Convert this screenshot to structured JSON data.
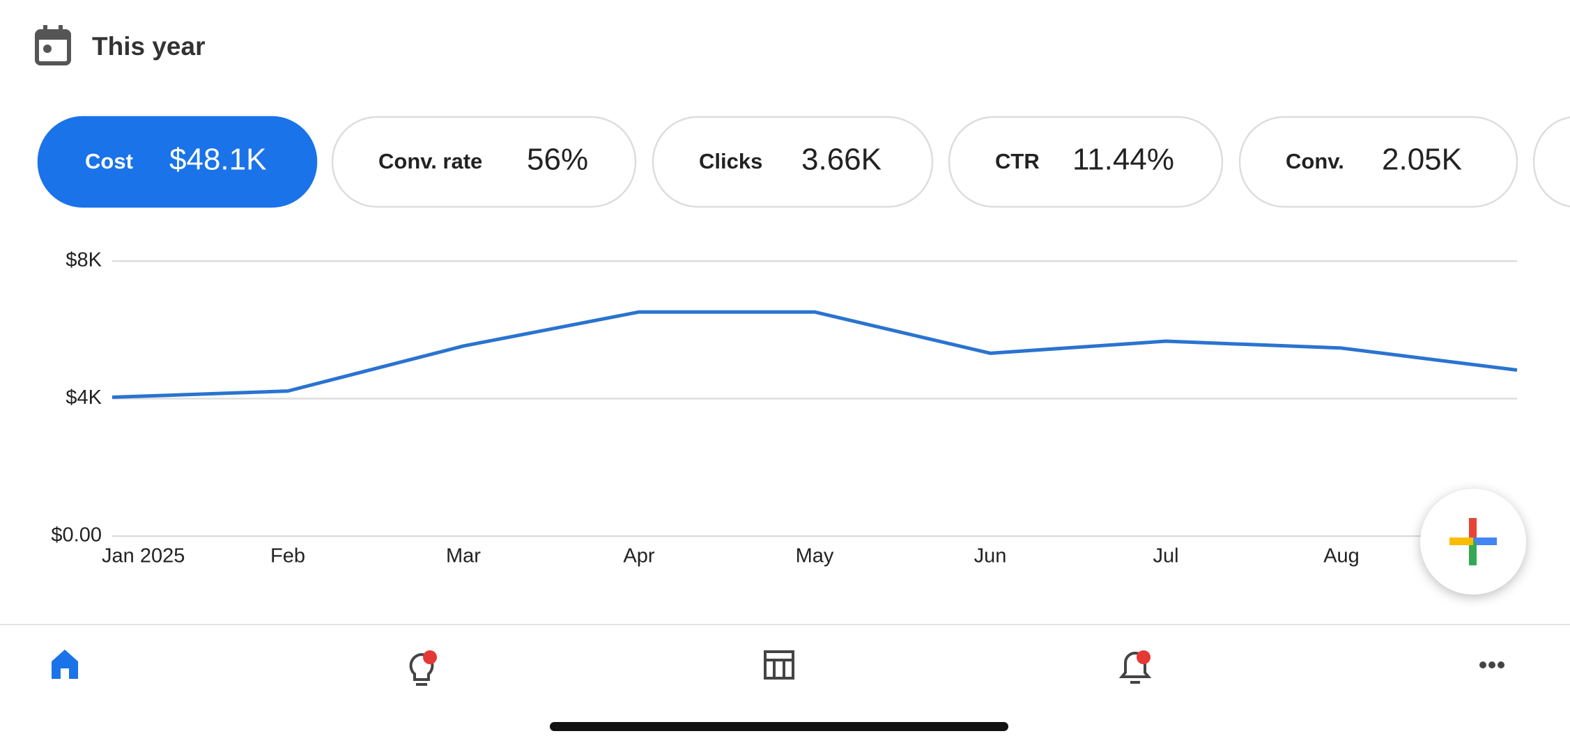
{
  "header": {
    "title": "This year"
  },
  "metrics": [
    {
      "label": "Cost",
      "value": "$48.1K",
      "selected": true
    },
    {
      "label": "Conv. rate",
      "value": "56%"
    },
    {
      "label": "Clicks",
      "value": "3.66K"
    },
    {
      "label": "CTR",
      "value": "11.44%"
    },
    {
      "label": "Conv.",
      "value": "2.05K"
    }
  ],
  "chart_data": {
    "type": "line",
    "categories": [
      "Jan 2025",
      "Feb",
      "Mar",
      "Apr",
      "May",
      "Jun",
      "Jul",
      "Aug",
      null
    ],
    "series": [
      {
        "name": "Cost",
        "color": "#2a73d0",
        "values": [
          4040,
          4220,
          5530,
          6520,
          6520,
          5320,
          5670,
          5470,
          4830
        ]
      }
    ],
    "ylim": [
      0,
      8000
    ],
    "yticks": [
      {
        "value": 0,
        "label": "$0.00"
      },
      {
        "value": 4000,
        "label": "$4K"
      },
      {
        "value": 8000,
        "label": "$8K"
      }
    ],
    "grid": true
  }
}
